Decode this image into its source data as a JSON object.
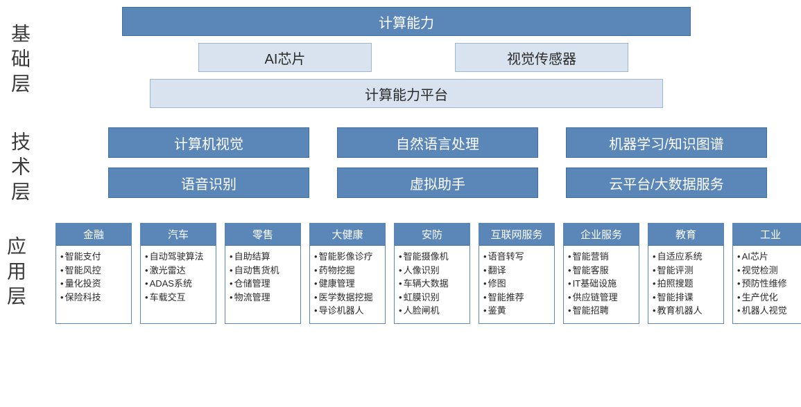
{
  "colors": {
    "block_fill": "#5b86b8",
    "block_border": "#3f6d9e",
    "lightblock_fill": "#d9e3ef",
    "lightblock_border": "#9db7d1",
    "text_dark": "#2a2a2a",
    "bg": "#ffffff"
  },
  "layer1": {
    "label": "基础层",
    "row1": "计算能力",
    "row2a": "AI芯片",
    "row2b": "视觉传感器",
    "row3": "计算能力平台"
  },
  "layer2": {
    "label": "技术层",
    "items": [
      "计算机视觉",
      "自然语言处理",
      "机器学习/知识图谱",
      "语音识别",
      "虚拟助手",
      "云平台/大数据服务"
    ]
  },
  "layer3": {
    "label": "应用层",
    "cards": [
      {
        "title": "金融",
        "items": [
          "智能支付",
          "智能风控",
          "量化投资",
          "保险科技"
        ]
      },
      {
        "title": "汽车",
        "items": [
          "自动驾驶算法",
          "激光雷达",
          "ADAS系统",
          "车载交互"
        ]
      },
      {
        "title": "零售",
        "items": [
          "自助结算",
          "自动售货机",
          "仓储管理",
          "物流管理"
        ]
      },
      {
        "title": "大健康",
        "items": [
          "智能影像诊疗",
          "药物挖掘",
          "健康管理",
          "医学数据挖掘",
          "导诊机器人"
        ]
      },
      {
        "title": "安防",
        "items": [
          "智能摄像机",
          "人像识别",
          "车辆大数据",
          "虹膜识别",
          "人脸闸机"
        ]
      },
      {
        "title": "互联网服务",
        "items": [
          "语音转写",
          "翻译",
          "修图",
          "智能推荐",
          "鉴黄"
        ]
      },
      {
        "title": "企业服务",
        "items": [
          "智能营销",
          "智能客服",
          "IT基础设施",
          "供应链管理",
          "智能招聘"
        ]
      },
      {
        "title": "教育",
        "items": [
          "自适应系统",
          "智能评测",
          "拍照搜题",
          "智能排课",
          "教育机器人"
        ]
      },
      {
        "title": "工业",
        "items": [
          "AI芯片",
          "视觉检测",
          "预防性维修",
          "生产优化",
          "机器人视觉"
        ]
      }
    ]
  }
}
